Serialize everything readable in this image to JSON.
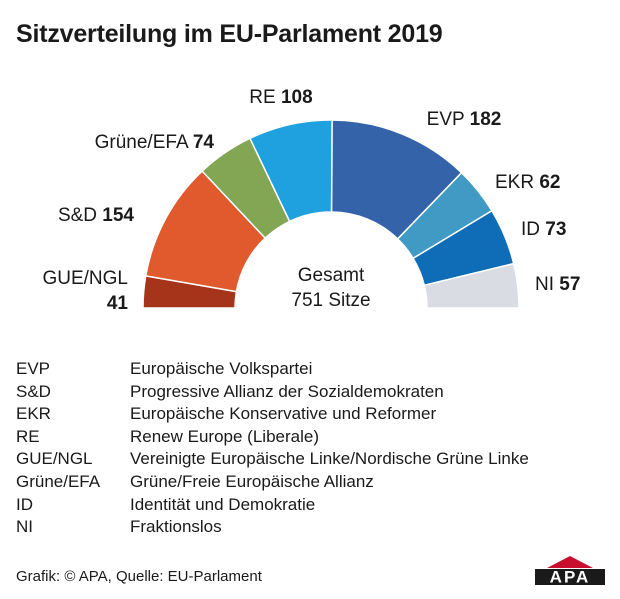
{
  "title": "Sitzverteilung im EU-Parlament 2019",
  "chart_data": {
    "type": "pie",
    "shape": "semicircle",
    "center_label": [
      "Gesamt",
      "751 Sitze"
    ],
    "slices": [
      {
        "name": "GUE/NGL",
        "value": 41,
        "color": "#a5341b"
      },
      {
        "name": "S&D",
        "value": 154,
        "color": "#e05a2d"
      },
      {
        "name": "Grüne/EFA",
        "value": 74,
        "color": "#82a653"
      },
      {
        "name": "RE",
        "value": 108,
        "color": "#1fa0df"
      },
      {
        "name": "EVP",
        "value": 182,
        "color": "#3563aa"
      },
      {
        "name": "EKR",
        "value": 62,
        "color": "#419ac4"
      },
      {
        "name": "ID",
        "value": 73,
        "color": "#0f6db8"
      },
      {
        "name": "NI",
        "value": 57,
        "color": "#d9dce2"
      }
    ]
  },
  "legend": [
    {
      "abbr": "EVP",
      "name": "Europäische Volkspartei"
    },
    {
      "abbr": "S&D",
      "name": "Progressive Allianz der Sozialdemokraten"
    },
    {
      "abbr": "EKR",
      "name": "Europäische Konservative und Reformer"
    },
    {
      "abbr": "RE",
      "name": "Renew Europe (Liberale)"
    },
    {
      "abbr": "GUE/NGL",
      "name": "Vereinigte Europäische Linke/Nordische Grüne Linke"
    },
    {
      "abbr": "Grüne/EFA",
      "name": "Grüne/Freie Europäische Allianz"
    },
    {
      "abbr": "ID",
      "name": "Identität und Demokratie"
    },
    {
      "abbr": "NI",
      "name": "Fraktionslos"
    }
  ],
  "source": "Grafik: © APA, Quelle: EU-Parlament",
  "logo_text": "APA",
  "logo_color": "#c8102e"
}
